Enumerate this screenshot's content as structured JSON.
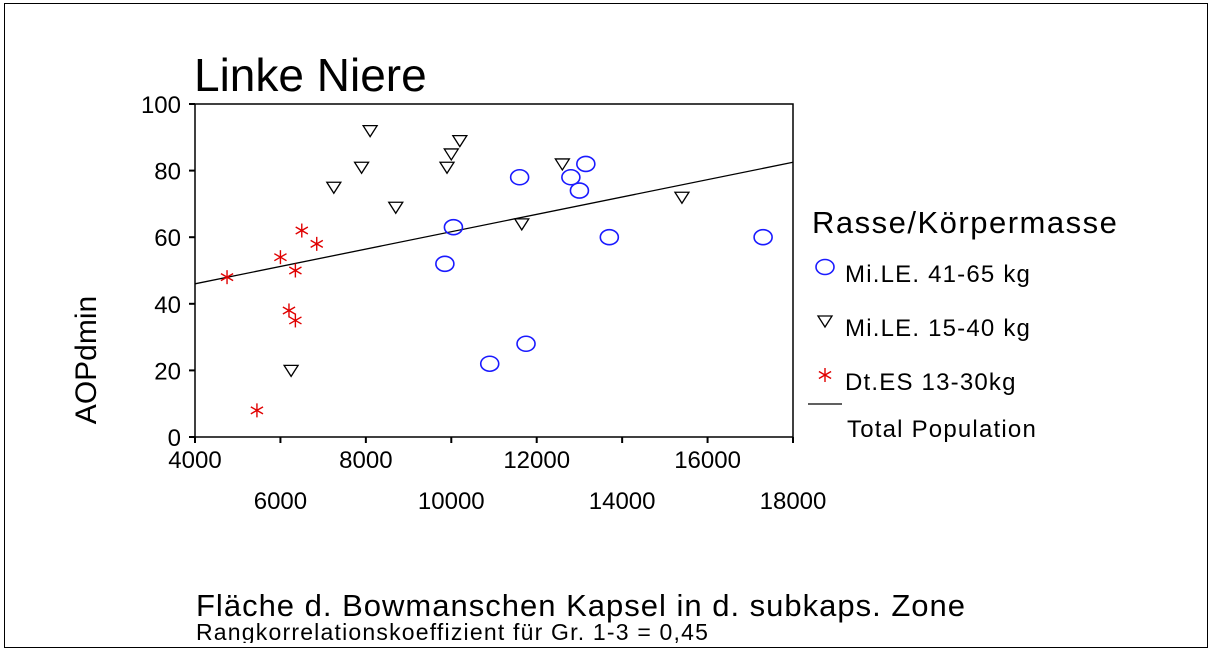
{
  "chart_data": {
    "type": "scatter",
    "title": "Linke Niere",
    "xlabel": "Fläche d. Bowmanschen Kapsel in d. subkaps. Zone",
    "ylabel": "AOPdmin",
    "note": "Rangkorrelationskoeffizient für Gr. 1-3 = 0,45",
    "xlim": [
      4000,
      18000
    ],
    "ylim": [
      0,
      100
    ],
    "x_ticks_upper": [
      "4000",
      "8000",
      "12000",
      "16000"
    ],
    "x_ticks_lower": [
      "6000",
      "10000",
      "14000",
      "18000"
    ],
    "y_ticks": [
      "0",
      "20",
      "40",
      "60",
      "80",
      "100"
    ],
    "legend_title": "Rasse/Körpermasse",
    "legend_position": "right",
    "series": [
      {
        "name": "Mi.LE. 41-65 kg",
        "marker": "circle",
        "color": "#1a1aff",
        "points": [
          [
            9850,
            52
          ],
          [
            10050,
            63
          ],
          [
            10900,
            22
          ],
          [
            11600,
            78
          ],
          [
            11750,
            28
          ],
          [
            12800,
            78
          ],
          [
            13000,
            74
          ],
          [
            13150,
            82
          ],
          [
            13700,
            60
          ],
          [
            17300,
            60
          ]
        ]
      },
      {
        "name": "Mi.LE. 15-40 kg",
        "marker": "triangle-down",
        "color": "#000000",
        "points": [
          [
            6250,
            20
          ],
          [
            7250,
            75
          ],
          [
            7900,
            81
          ],
          [
            8100,
            92
          ],
          [
            8700,
            69
          ],
          [
            9900,
            81
          ],
          [
            10000,
            85
          ],
          [
            10200,
            89
          ],
          [
            11650,
            64
          ],
          [
            12600,
            82
          ],
          [
            15400,
            72
          ]
        ]
      },
      {
        "name": "Dt.ES 13-30kg",
        "marker": "asterisk",
        "color": "#e00000",
        "points": [
          [
            4750,
            48
          ],
          [
            5450,
            8
          ],
          [
            6000,
            54
          ],
          [
            6200,
            38
          ],
          [
            6350,
            35
          ],
          [
            6350,
            50
          ],
          [
            6500,
            62
          ],
          [
            6850,
            58
          ]
        ]
      }
    ],
    "fit_line": {
      "name": "Total Population",
      "color": "#000000",
      "points": [
        [
          4000,
          46
        ],
        [
          18000,
          82.5
        ]
      ]
    }
  }
}
